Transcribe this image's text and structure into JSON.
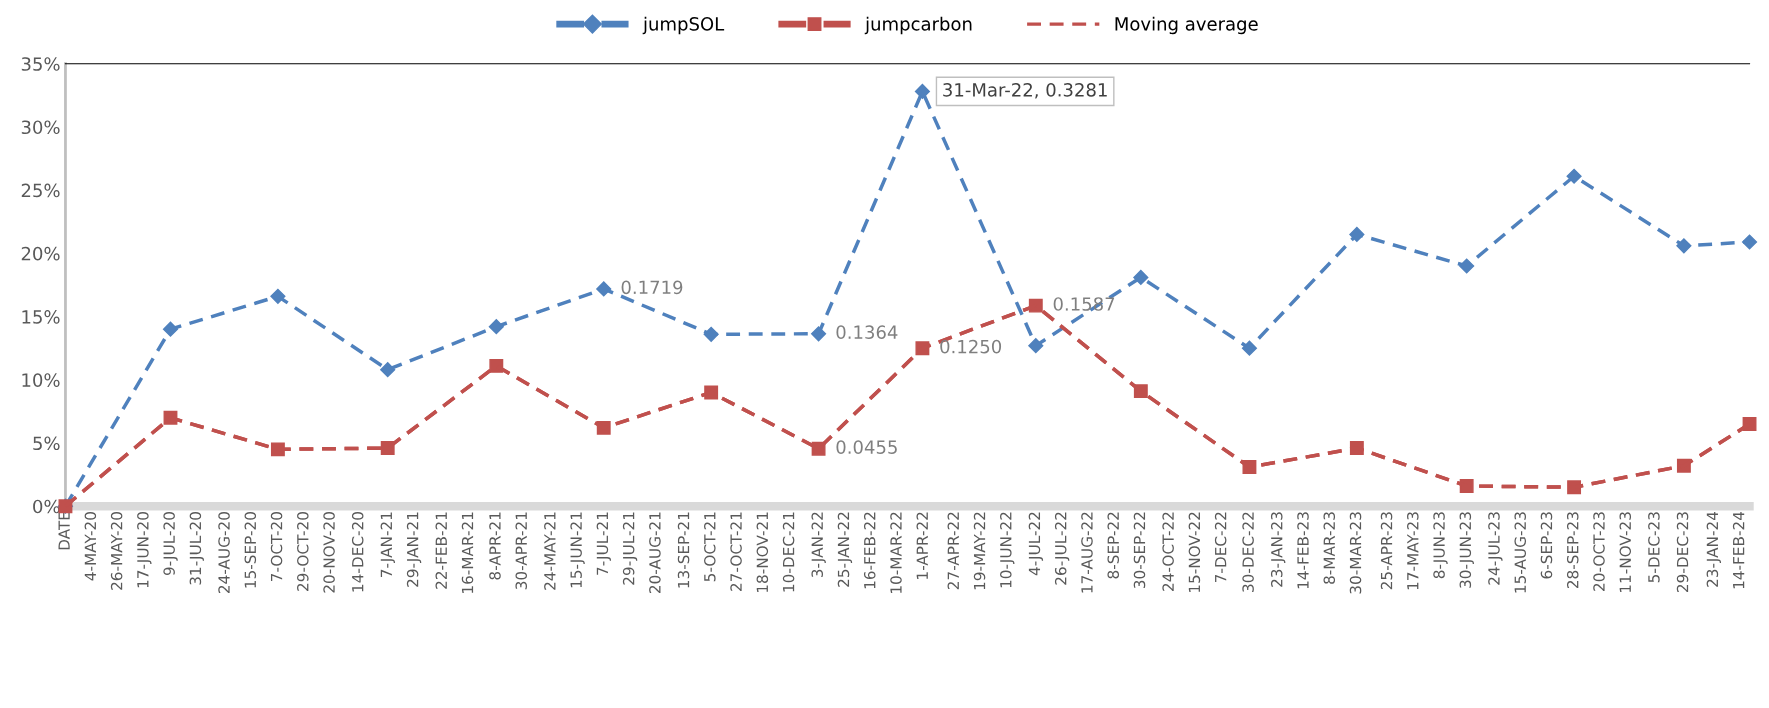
{
  "chart_data": {
    "type": "line",
    "x": [
      "2020-04-12",
      "2020-07-09",
      "2020-10-07",
      "2021-01-07",
      "2021-04-08",
      "2021-07-07",
      "2021-10-05",
      "2022-01-03",
      "2022-03-31",
      "2022-07-04",
      "2022-09-30",
      "2022-12-30",
      "2023-03-30",
      "2023-06-30",
      "2023-09-28",
      "2023-12-29",
      "2024-02-22"
    ],
    "series": [
      {
        "name": "jumpSOL",
        "color": "#4f81bd",
        "marker": "diamond",
        "line_style": "dashed",
        "values": [
          0,
          0.14,
          0.166,
          0.108,
          0.142,
          0.1719,
          0.136,
          0.1364,
          0.3281,
          0.127,
          0.181,
          0.125,
          0.215,
          0.19,
          0.261,
          0.206,
          0.209
        ],
        "value_labels": [
          null,
          null,
          null,
          null,
          null,
          "0.1719",
          null,
          "0.1364",
          null,
          null,
          null,
          null,
          null,
          null,
          null,
          null,
          null
        ]
      },
      {
        "name": "jumpcarbon",
        "color": "#c0504d",
        "marker": "square",
        "line_style": "dashed",
        "values": [
          0,
          0.07,
          0.045,
          0.046,
          0.111,
          0.062,
          0.09,
          0.0455,
          0.125,
          0.1587,
          0.091,
          0.031,
          0.046,
          0.016,
          0.015,
          0.032,
          0.065
        ],
        "value_labels": [
          null,
          null,
          null,
          null,
          null,
          null,
          null,
          "0.0455",
          "0.1250",
          "0.1587",
          null,
          null,
          null,
          null,
          null,
          null,
          null
        ]
      },
      {
        "name": "Moving average",
        "color": "#c0504d",
        "marker": "none",
        "line_style": "dashed",
        "values": [
          0,
          0.07,
          0.045,
          0.046,
          0.111,
          0.062,
          0.09,
          0.0455,
          0.125,
          0.1587,
          0.091,
          0.031,
          0.046,
          0.016,
          0.015,
          0.032,
          0.065
        ]
      }
    ],
    "annotations": [
      {
        "text": "31-Mar-22, 0.3281",
        "x": "2022-03-31",
        "y": 0.3281
      }
    ],
    "xlim": [
      "2020-04-12",
      "2024-02-22"
    ],
    "xticks": [
      {
        "value": "2020-04-12",
        "label": "DATE"
      },
      {
        "value": "2020-05-04",
        "label": "4-MAY-20"
      },
      {
        "value": "2020-05-26",
        "label": "26-MAY-20"
      },
      {
        "value": "2020-06-17",
        "label": "17-JUN-20"
      },
      {
        "value": "2020-07-09",
        "label": "9-JUL-20"
      },
      {
        "value": "2020-07-31",
        "label": "31-JUL-20"
      },
      {
        "value": "2020-08-24",
        "label": "24-AUG-20"
      },
      {
        "value": "2020-09-15",
        "label": "15-SEP-20"
      },
      {
        "value": "2020-10-07",
        "label": "7-OCT-20"
      },
      {
        "value": "2020-10-29",
        "label": "29-OCT-20"
      },
      {
        "value": "2020-11-20",
        "label": "20-NOV-20"
      },
      {
        "value": "2020-12-14",
        "label": "14-DEC-20"
      },
      {
        "value": "2021-01-07",
        "label": "7-JAN-21"
      },
      {
        "value": "2021-01-29",
        "label": "29-JAN-21"
      },
      {
        "value": "2021-02-22",
        "label": "22-FEB-21"
      },
      {
        "value": "2021-03-16",
        "label": "16-MAR-21"
      },
      {
        "value": "2021-04-08",
        "label": "8-APR-21"
      },
      {
        "value": "2021-04-30",
        "label": "30-APR-21"
      },
      {
        "value": "2021-05-24",
        "label": "24-MAY-21"
      },
      {
        "value": "2021-06-15",
        "label": "15-JUN-21"
      },
      {
        "value": "2021-07-07",
        "label": "7-JUL-21"
      },
      {
        "value": "2021-07-29",
        "label": "29-JUL-21"
      },
      {
        "value": "2021-08-20",
        "label": "20-AUG-21"
      },
      {
        "value": "2021-09-13",
        "label": "13-SEP-21"
      },
      {
        "value": "2021-10-05",
        "label": "5-OCT-21"
      },
      {
        "value": "2021-10-27",
        "label": "27-OCT-21"
      },
      {
        "value": "2021-11-18",
        "label": "18-NOV-21"
      },
      {
        "value": "2021-12-10",
        "label": "10-DEC-21"
      },
      {
        "value": "2022-01-03",
        "label": "3-JAN-22"
      },
      {
        "value": "2022-01-25",
        "label": "25-JAN-22"
      },
      {
        "value": "2022-02-16",
        "label": "16-FEB-22"
      },
      {
        "value": "2022-03-10",
        "label": "10-MAR-22"
      },
      {
        "value": "2022-04-01",
        "label": "1-APR-22"
      },
      {
        "value": "2022-04-27",
        "label": "27-APR-22"
      },
      {
        "value": "2022-05-19",
        "label": "19-MAY-22"
      },
      {
        "value": "2022-06-10",
        "label": "10-JUN-22"
      },
      {
        "value": "2022-07-04",
        "label": "4-JUL-22"
      },
      {
        "value": "2022-07-26",
        "label": "26-JUL-22"
      },
      {
        "value": "2022-08-17",
        "label": "17-AUG-22"
      },
      {
        "value": "2022-09-08",
        "label": "8-SEP-22"
      },
      {
        "value": "2022-09-30",
        "label": "30-SEP-22"
      },
      {
        "value": "2022-10-24",
        "label": "24-OCT-22"
      },
      {
        "value": "2022-11-15",
        "label": "15-NOV-22"
      },
      {
        "value": "2022-12-07",
        "label": "7-DEC-22"
      },
      {
        "value": "2022-12-30",
        "label": "30-DEC-22"
      },
      {
        "value": "2023-01-23",
        "label": "23-JAN-23"
      },
      {
        "value": "2023-02-14",
        "label": "14-FEB-23"
      },
      {
        "value": "2023-03-08",
        "label": "8-MAR-23"
      },
      {
        "value": "2023-03-30",
        "label": "30-MAR-23"
      },
      {
        "value": "2023-04-25",
        "label": "25-APR-23"
      },
      {
        "value": "2023-05-17",
        "label": "17-MAY-23"
      },
      {
        "value": "2023-06-08",
        "label": "8-JUN-23"
      },
      {
        "value": "2023-06-30",
        "label": "30-JUN-23"
      },
      {
        "value": "2023-07-24",
        "label": "24-JUL-23"
      },
      {
        "value": "2023-08-15",
        "label": "15-AUG-23"
      },
      {
        "value": "2023-09-06",
        "label": "6-SEP-23"
      },
      {
        "value": "2023-09-28",
        "label": "28-SEP-23"
      },
      {
        "value": "2023-10-20",
        "label": "20-OCT-23"
      },
      {
        "value": "2023-11-11",
        "label": "11-NOV-23"
      },
      {
        "value": "2023-12-05",
        "label": "5-DEC-23"
      },
      {
        "value": "2023-12-29",
        "label": "29-DEC-23"
      },
      {
        "value": "2024-01-23",
        "label": "23-JAN-24"
      },
      {
        "value": "2024-02-14",
        "label": "14-FEB-24"
      }
    ],
    "ylim": [
      0,
      0.35
    ],
    "yticks": [
      {
        "value": 0,
        "label": "0%"
      },
      {
        "value": 0.05,
        "label": "5%"
      },
      {
        "value": 0.1,
        "label": "10%"
      },
      {
        "value": 0.15,
        "label": "15%"
      },
      {
        "value": 0.2,
        "label": "20%"
      },
      {
        "value": 0.25,
        "label": "25%"
      },
      {
        "value": 0.3,
        "label": "30%"
      },
      {
        "value": 0.35,
        "label": "35%"
      }
    ],
    "grid": false,
    "legend": "top"
  }
}
